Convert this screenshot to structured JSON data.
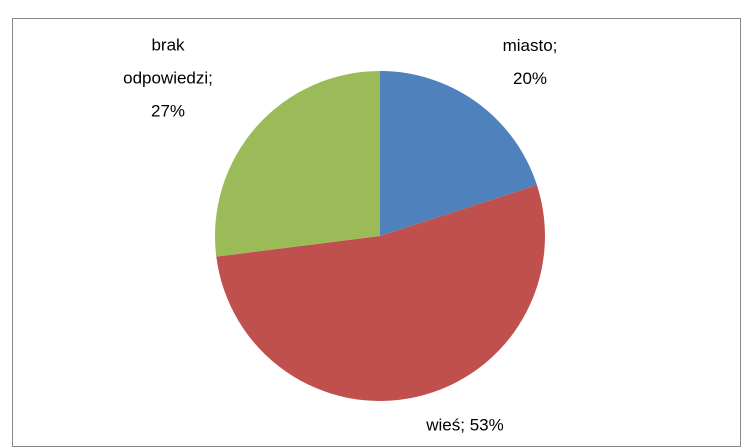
{
  "chart_data": {
    "type": "pie",
    "values": [
      20,
      53,
      27
    ],
    "value_labels": [
      "miasto; 20%",
      "wieś; 53%",
      "brak odpowiedzi; 27%"
    ],
    "colors": [
      "#4f81bd",
      "#c0504d",
      "#9bbb59"
    ]
  }
}
